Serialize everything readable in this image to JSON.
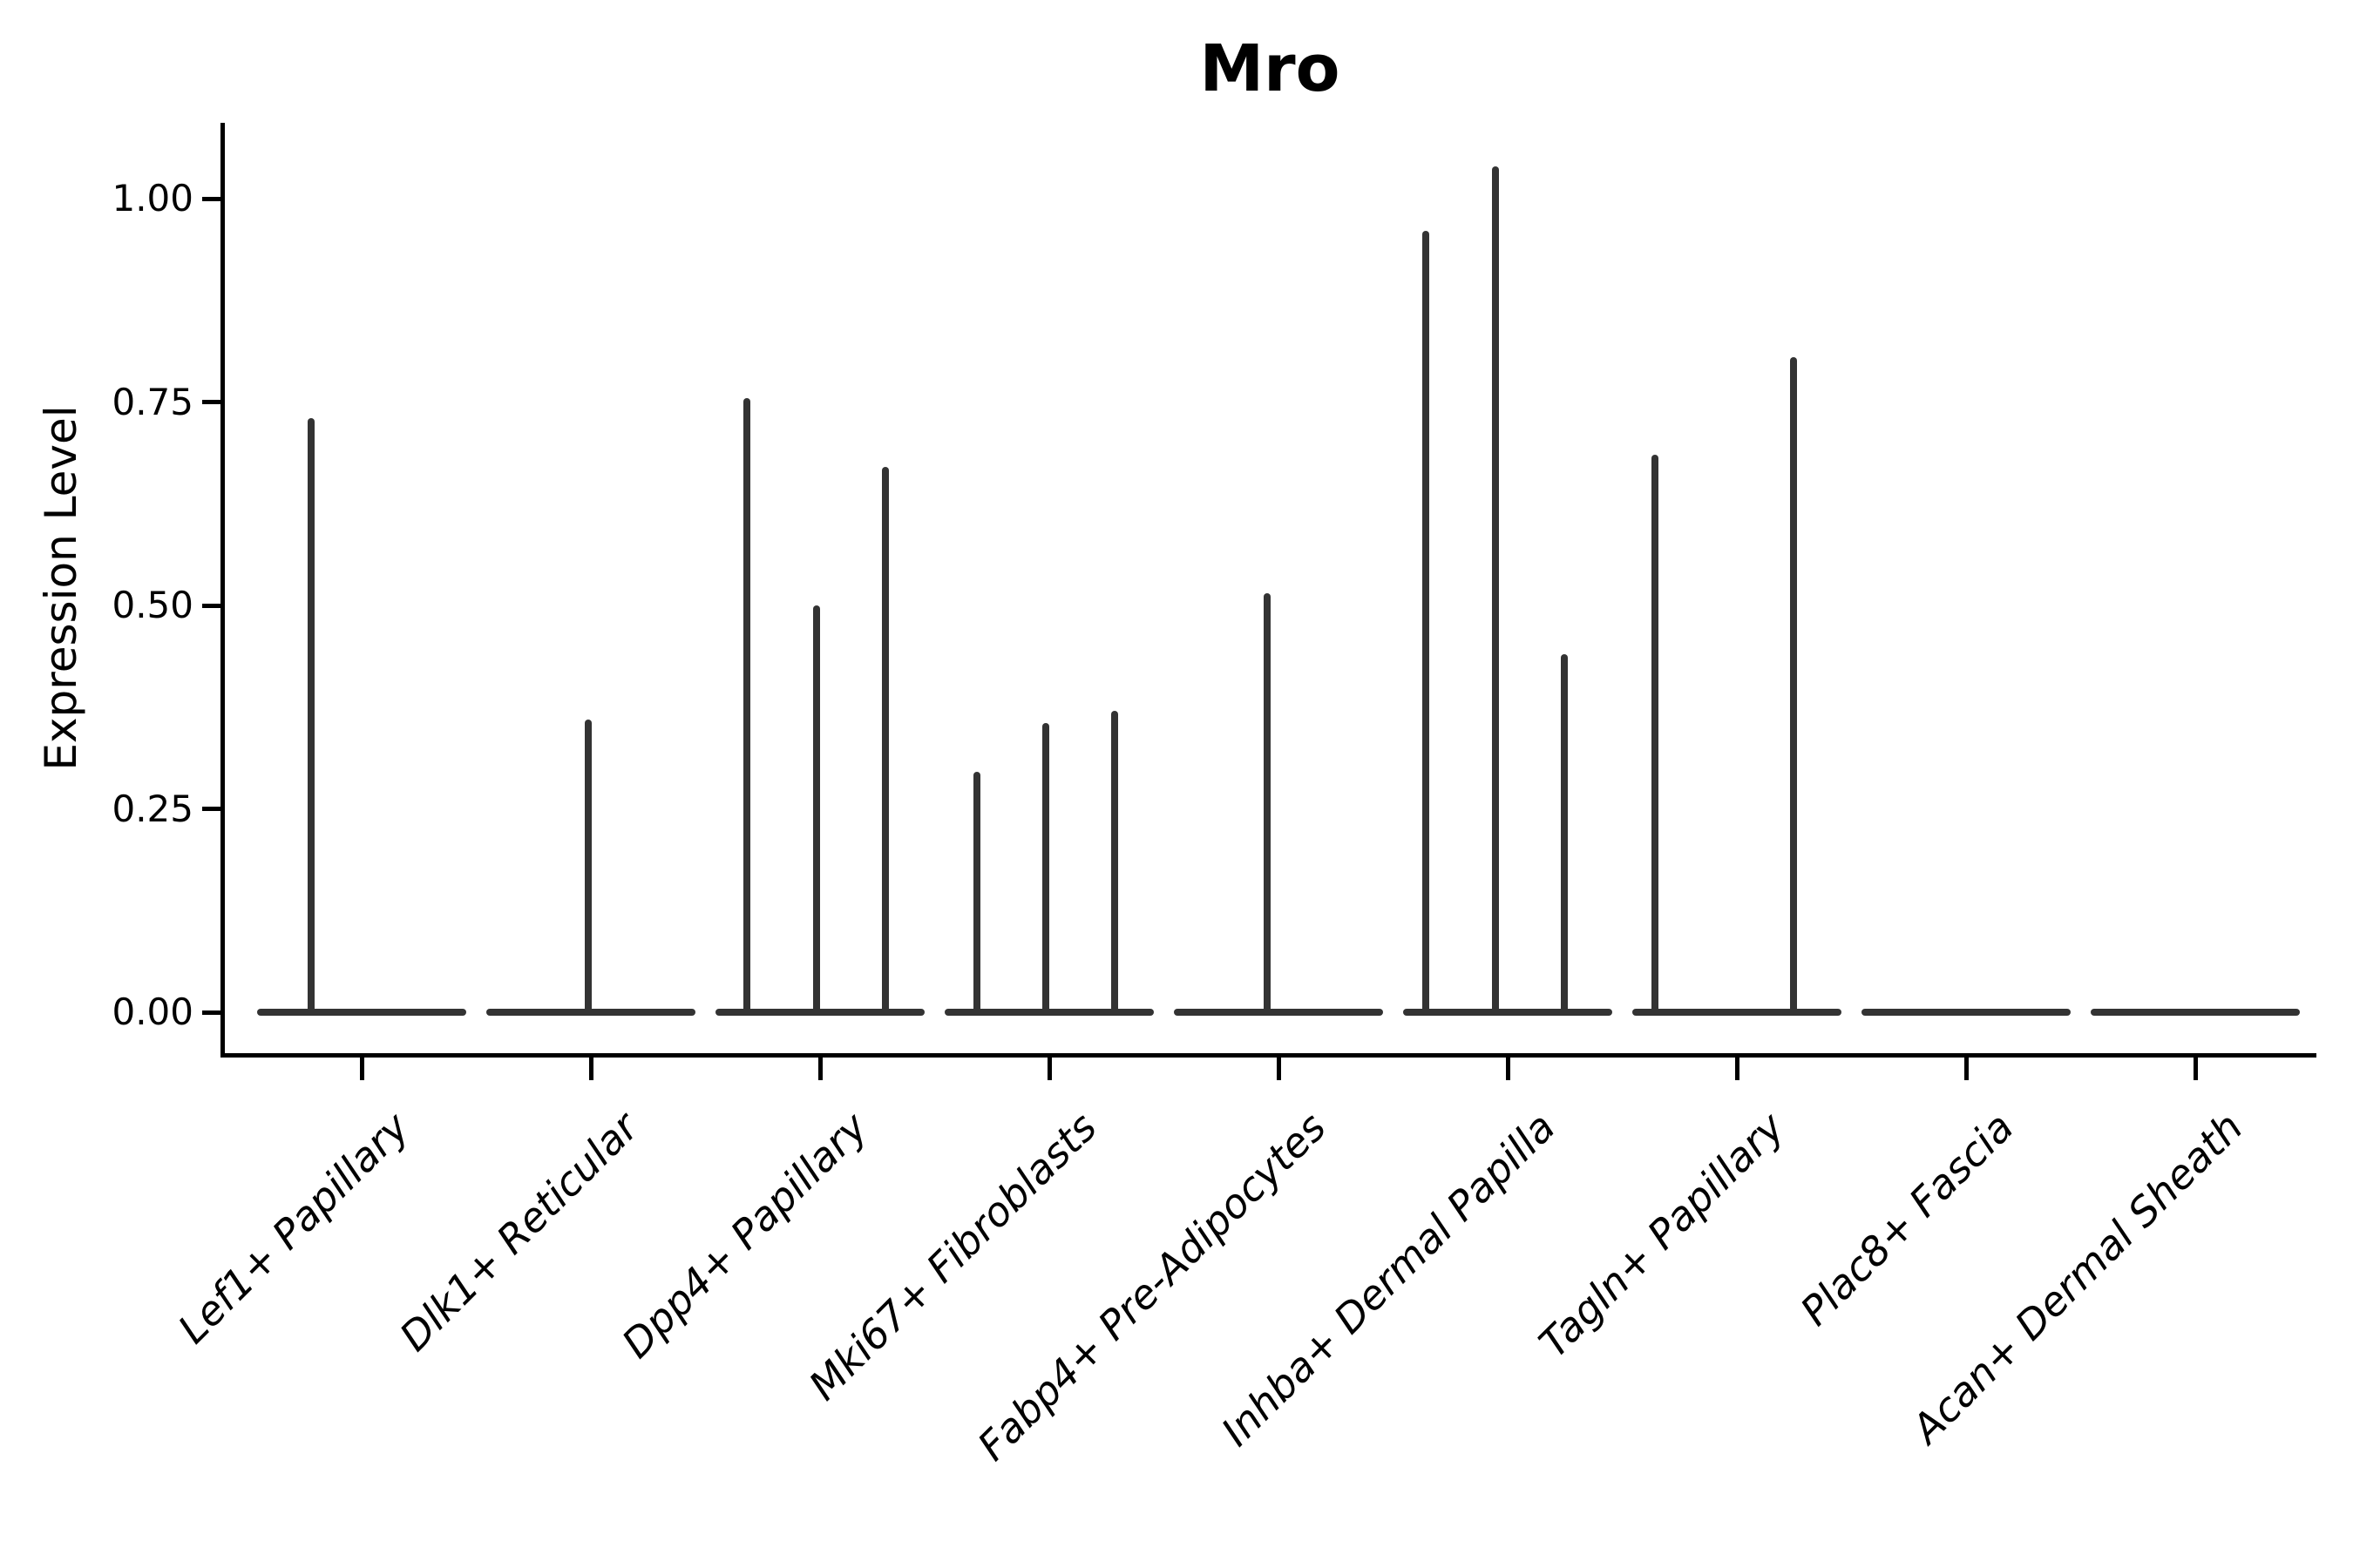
{
  "figure": {
    "title": "Mro"
  },
  "chart_data": {
    "type": "violin",
    "title": "Mro",
    "subtitle": "",
    "xlabel": "",
    "ylabel": "Expression Level",
    "ylim": [
      -0.05,
      1.093
    ],
    "grid": false,
    "legend_position": "none",
    "violin_color": "#333333",
    "axis_color": "#000000",
    "yticks": [
      {
        "value": 0.0,
        "label": "0.00"
      },
      {
        "value": 0.25,
        "label": "0.25"
      },
      {
        "value": 0.5,
        "label": "0.50"
      },
      {
        "value": 0.75,
        "label": "0.75"
      },
      {
        "value": 1.0,
        "label": "1.00"
      }
    ],
    "categories": [
      {
        "label": "Lef1+ Papillary",
        "spikes": [
          {
            "dx": -58,
            "value": 0.73
          }
        ]
      },
      {
        "label": "Dlk1+ Reticular",
        "spikes": [
          {
            "dx": -3,
            "value": 0.36
          }
        ]
      },
      {
        "label": "Dpp4+ Papillary",
        "spikes": [
          {
            "dx": -84,
            "value": 0.755
          },
          {
            "dx": -4,
            "value": 0.5
          },
          {
            "dx": 75,
            "value": 0.67
          }
        ]
      },
      {
        "label": "Mki67+ Fibroblasts",
        "spikes": [
          {
            "dx": -83,
            "value": 0.295
          },
          {
            "dx": -4,
            "value": 0.355
          },
          {
            "dx": 75,
            "value": 0.37
          }
        ]
      },
      {
        "label": "Fabp4+ Pre-Adipocytes",
        "spikes": [
          {
            "dx": -13,
            "value": 0.515
          }
        ]
      },
      {
        "label": "Inhba+ Dermal Papilla",
        "spikes": [
          {
            "dx": -94,
            "value": 0.96
          },
          {
            "dx": -14,
            "value": 1.04
          },
          {
            "dx": 65,
            "value": 0.44
          }
        ]
      },
      {
        "label": "Tagln+ Papillary",
        "spikes": [
          {
            "dx": -94,
            "value": 0.685
          },
          {
            "dx": 65,
            "value": 0.805
          }
        ]
      },
      {
        "label": "Plac8+ Fascia",
        "spikes": []
      },
      {
        "label": "Acan+ Dermal Sheath",
        "spikes": []
      }
    ]
  }
}
